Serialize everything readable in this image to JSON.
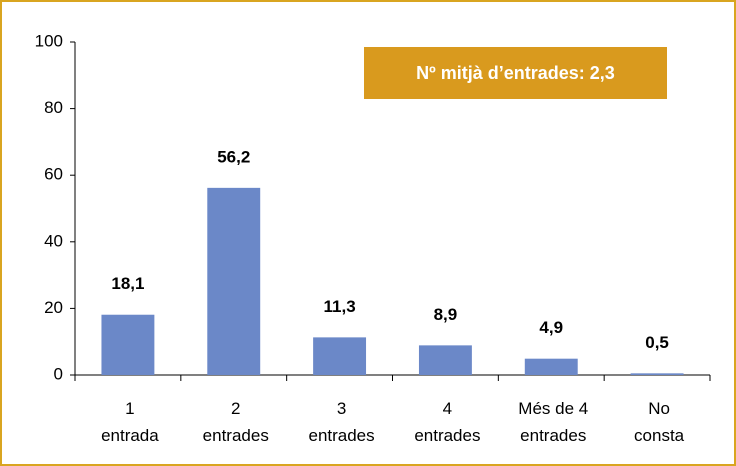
{
  "chart_data": {
    "type": "bar",
    "annotation": "Nº mitjà d’entrades: 2,3",
    "categories": [
      "1\nentrada",
      "2\nentrades",
      "3\nentrades",
      "4\nentrades",
      "Més de 4\nentrades",
      "No\nconsta"
    ],
    "values": [
      18.1,
      56.2,
      11.3,
      8.9,
      4.9,
      0.5
    ],
    "value_labels": [
      "18,1",
      "56,2",
      "11,3",
      "8,9",
      "4,9",
      "0,5"
    ],
    "color": "#6b88c8",
    "ylim": [
      0,
      100
    ],
    "yticks": [
      0,
      20,
      40,
      60,
      80,
      100
    ],
    "grid": false
  }
}
